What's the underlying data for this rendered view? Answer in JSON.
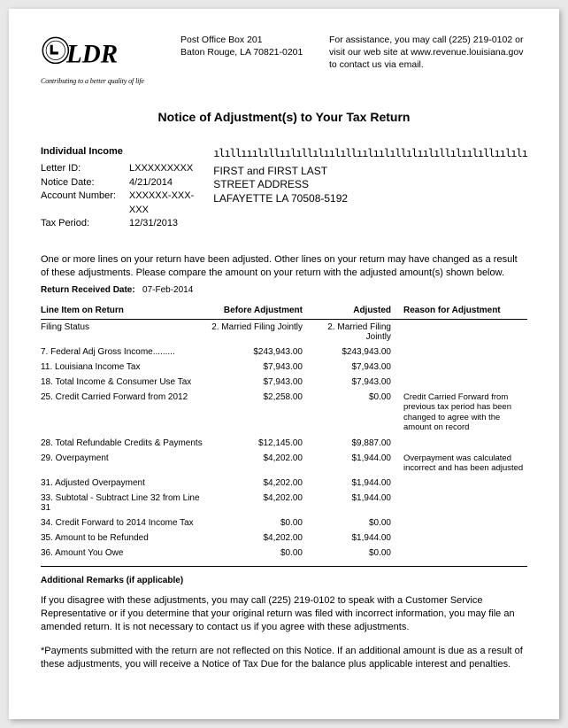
{
  "header": {
    "agency_abbrev": "LDR",
    "tagline": "Contributing to a better quality of life",
    "return_address_line1": "Post Office Box 201",
    "return_address_line2": "Baton Rouge, LA 70821-0201",
    "assistance_text": "For assistance, you may call (225) 219-0102 or visit our web site at www.revenue.louisiana.gov to contact us via email."
  },
  "title": "Notice of Adjustment(s) to Your Tax Return",
  "recipient_info": {
    "section_heading": "Individual Income",
    "letter_id_label": "Letter ID:",
    "letter_id": "LXXXXXXXXX",
    "notice_date_label": "Notice Date:",
    "notice_date": "4/21/2014",
    "account_number_label": "Account Number:",
    "account_number": "XXXXXX-XXX-XXX",
    "tax_period_label": "Tax Period:",
    "tax_period": "12/31/2013"
  },
  "mailing": {
    "barcode_text": "ılıllııılıllıılıllılıılıllıılıılıllılıılıllılıılıllıılılı",
    "name_line": "FIRST and FIRST LAST",
    "street_line": "STREET ADDRESS",
    "city_line": "LAFAYETTE LA 70508-5192"
  },
  "intro_paragraph": "One or more lines on your return have been adjusted. Other lines on your return may have changed as a result of these adjustments. Please compare the amount on your return with the adjusted amount(s) shown below.",
  "return_received": {
    "label": "Return Received Date:",
    "value": "07-Feb-2014"
  },
  "table": {
    "columns": {
      "line_item": "Line Item on Return",
      "before": "Before Adjustment",
      "adjusted": "Adjusted",
      "reason": "Reason for Adjustment"
    },
    "rows": [
      {
        "item": "Filing Status",
        "before": "2. Married Filing Jointly",
        "adjusted": "2. Married Filing Jointly",
        "reason": ""
      },
      {
        "item": "7. Federal Adj Gross Income.........",
        "before": "$243,943.00",
        "adjusted": "$243,943.00",
        "reason": ""
      },
      {
        "item": "11. Louisiana Income Tax",
        "before": "$7,943.00",
        "adjusted": "$7,943.00",
        "reason": ""
      },
      {
        "item": "18. Total Income & Consumer Use Tax",
        "before": "$7,943.00",
        "adjusted": "$7,943.00",
        "reason": ""
      },
      {
        "item": "25. Credit Carried Forward from 2012",
        "before": "$2,258.00",
        "adjusted": "$0.00",
        "reason": "Credit Carried Forward from previous tax period has been changed to agree with the amount on record"
      },
      {
        "item": "28. Total Refundable Credits & Payments",
        "before": "$12,145.00",
        "adjusted": "$9,887.00",
        "reason": ""
      },
      {
        "item": "29. Overpayment",
        "before": "$4,202.00",
        "adjusted": "$1,944.00",
        "reason": "Overpayment was calculated incorrect and has been adjusted"
      },
      {
        "item": "31. Adjusted Overpayment",
        "before": "$4,202.00",
        "adjusted": "$1,944.00",
        "reason": ""
      },
      {
        "item": "33. Subtotal - Subtract Line 32 from Line 31",
        "before": "$4,202.00",
        "adjusted": "$1,944.00",
        "reason": ""
      },
      {
        "item": "34. Credit Forward to 2014 Income Tax",
        "before": "$0.00",
        "adjusted": "$0.00",
        "reason": ""
      },
      {
        "item": "35. Amount to be Refunded",
        "before": "$4,202.00",
        "adjusted": "$1,944.00",
        "reason": ""
      },
      {
        "item": "36. Amount You Owe",
        "before": "$0.00",
        "adjusted": "$0.00",
        "reason": ""
      }
    ]
  },
  "remarks": {
    "heading": "Additional Remarks (if applicable)",
    "para1": "If you disagree with these adjustments, you may call (225) 219-0102 to speak with a Customer Service Representative or if you determine that your original return was filed with incorrect information, you may file an amended return. It is not necessary to contact us if you agree with these adjustments.",
    "para2": "*Payments submitted with the return are not reflected on this Notice. If an additional amount is due as a result of these adjustments, you will receive a Notice of Tax Due for the balance plus applicable interest and penalties."
  },
  "colors": {
    "page_bg": "#ffffff",
    "body_bg": "#e8e8e8",
    "text": "#000000",
    "rule": "#000000"
  }
}
